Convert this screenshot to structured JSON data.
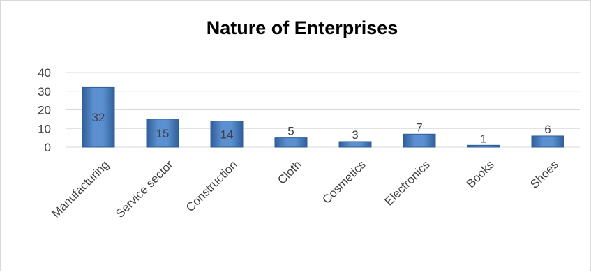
{
  "chart_data": {
    "type": "bar",
    "title": "Nature of Enterprises",
    "categories": [
      "Manufacturing",
      "Service sector",
      "Construction",
      "Cloth",
      "Cosmetics",
      "Electronics",
      "Books",
      "Shoes"
    ],
    "values": [
      32,
      15,
      14,
      5,
      3,
      7,
      1,
      6
    ],
    "data_labels": [
      "32",
      "15",
      "14",
      "5",
      "3",
      "7",
      "1",
      "6"
    ],
    "yticks": [
      "0",
      "10",
      "20",
      "30",
      "40"
    ],
    "ylim": [
      0,
      40
    ],
    "grid": true,
    "legend": "none",
    "colors": {
      "bar": "#4f81bd",
      "bar_light": "#6d9ad4",
      "bar_dark": "#2f5f99",
      "grid": "#d9d9d9",
      "text": "#404040"
    }
  }
}
